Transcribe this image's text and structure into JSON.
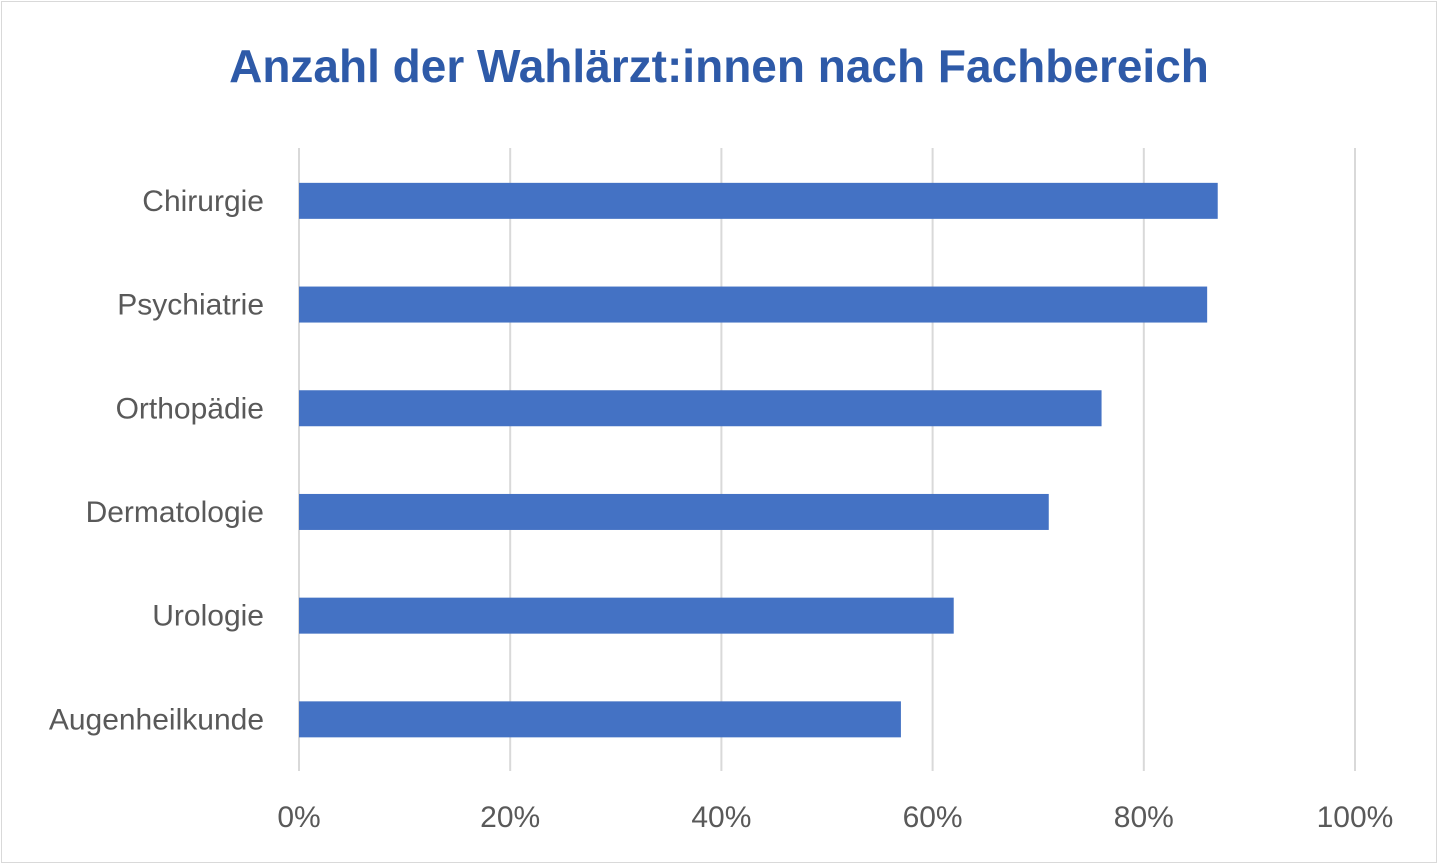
{
  "chart_data": {
    "type": "bar",
    "orientation": "horizontal",
    "title": "Anzahl der Wahlärzt:innen nach Fachbereich",
    "categories": [
      "Chirurgie",
      "Psychiatrie",
      "Orthopädie",
      "Dermatologie",
      "Urologie",
      "Augenheilkunde"
    ],
    "values": [
      0.87,
      0.86,
      0.76,
      0.71,
      0.62,
      0.57
    ],
    "xlim": [
      0,
      1
    ],
    "xticks": [
      0,
      0.2,
      0.4,
      0.6,
      0.8,
      1.0
    ],
    "xtick_labels": [
      "0%",
      "20%",
      "40%",
      "60%",
      "80%",
      "100%"
    ],
    "grid": true,
    "legend": "none",
    "bar_color": "#4472c4",
    "grid_color": "#d9d9d9",
    "title_color": "#2e5aa8"
  }
}
